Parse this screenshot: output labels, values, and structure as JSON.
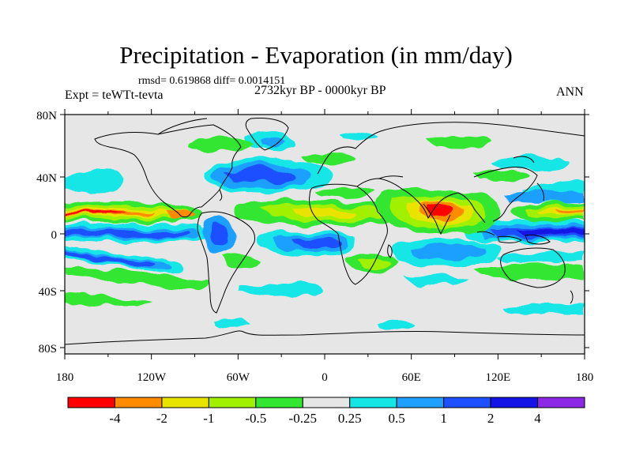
{
  "title": "Precipitation - Evaporation (in mm/day)",
  "stats": "rmsd= 0.619868 diff= 0.0014151",
  "experiment": "Expt = teWTt-tevta",
  "period": "2732kyr BP - 0000kyr BP",
  "season": "ANN",
  "lat_labels": [
    "80N",
    "40N",
    "0",
    "40S",
    "80S"
  ],
  "lon_labels": [
    "180",
    "120W",
    "60W",
    "0",
    "60E",
    "120E",
    "180"
  ],
  "colorbar": {
    "labels": [
      "-4",
      "-2",
      "-1",
      "-0.5",
      "-0.25",
      "0.25",
      "0.5",
      "1",
      "2",
      "4"
    ],
    "colors": [
      "#ff0000",
      "#ff8c00",
      "#e8e400",
      "#a0f000",
      "#32e632",
      "#e6e6e6",
      "#14e6e6",
      "#1ea0ff",
      "#1e50ff",
      "#1414e6",
      "#8c28e6"
    ]
  },
  "background_color": "#e6e6e6"
}
